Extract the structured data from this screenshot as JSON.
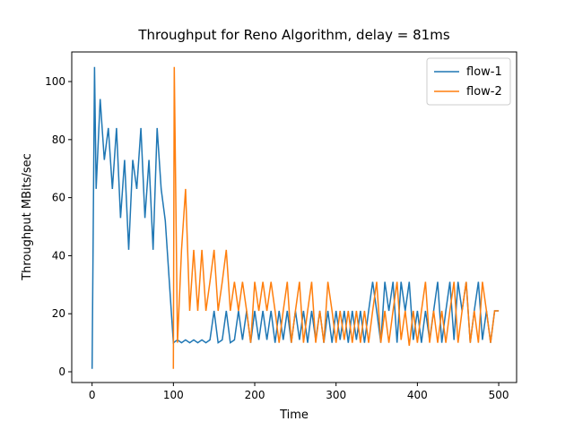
{
  "chart_data": {
    "type": "line",
    "title": "Throughput for Reno Algorithm, delay = 81ms",
    "x_label": "Time",
    "y_label": "Throughput MBits/sec",
    "xlim": [
      -25,
      522
    ],
    "ylim": [
      -3.7,
      110.2
    ],
    "xticks": [
      0,
      100,
      200,
      300,
      400,
      500
    ],
    "yticks": [
      0,
      20,
      40,
      60,
      80,
      100
    ],
    "grid": false,
    "legend": "upper right",
    "series": [
      {
        "name": "flow-1",
        "color": "#1f77b4",
        "x": [
          0,
          3,
          5,
          10,
          15,
          20,
          25,
          30,
          35,
          40,
          45,
          50,
          55,
          60,
          65,
          70,
          75,
          80,
          85,
          90,
          95,
          100,
          105,
          110,
          115,
          120,
          125,
          130,
          135,
          140,
          145,
          150,
          155,
          160,
          165,
          170,
          175,
          180,
          185,
          190,
          195,
          200,
          205,
          210,
          215,
          220,
          225,
          230,
          235,
          240,
          245,
          250,
          255,
          260,
          265,
          270,
          275,
          280,
          285,
          290,
          295,
          300,
          305,
          310,
          315,
          320,
          325,
          330,
          335,
          340,
          345,
          350,
          355,
          360,
          365,
          370,
          375,
          380,
          385,
          390,
          395,
          400,
          405,
          410,
          415,
          420,
          425,
          430,
          435,
          440,
          445,
          450,
          455,
          460,
          465,
          470,
          475,
          480,
          485,
          490,
          495,
          500
        ],
        "values": [
          1,
          105,
          63,
          94,
          73,
          84,
          63,
          84,
          53,
          73,
          42,
          73,
          63,
          84,
          53,
          73,
          42,
          84,
          63,
          52,
          31,
          10,
          11,
          10,
          11,
          10,
          11,
          10,
          11,
          10,
          11,
          21,
          10,
          11,
          21,
          10,
          11,
          21,
          11,
          21,
          10,
          21,
          11,
          21,
          11,
          21,
          10,
          21,
          11,
          21,
          10,
          21,
          11,
          21,
          10,
          21,
          11,
          21,
          10,
          21,
          10,
          21,
          11,
          21,
          10,
          21,
          11,
          21,
          10,
          21,
          31,
          21,
          10,
          31,
          21,
          31,
          10,
          31,
          21,
          31,
          11,
          21,
          10,
          21,
          11,
          21,
          31,
          10,
          21,
          31,
          11,
          31,
          21,
          31,
          10,
          21,
          31,
          11,
          21,
          10,
          21,
          21
        ]
      },
      {
        "name": "flow-2",
        "color": "#ff7f0e",
        "x": [
          100,
          101,
          105,
          110,
          115,
          120,
          125,
          130,
          135,
          140,
          145,
          150,
          155,
          160,
          165,
          170,
          175,
          180,
          185,
          190,
          195,
          200,
          205,
          210,
          215,
          220,
          225,
          230,
          235,
          240,
          245,
          250,
          255,
          260,
          265,
          270,
          275,
          280,
          285,
          290,
          295,
          300,
          305,
          310,
          315,
          320,
          325,
          330,
          335,
          340,
          345,
          350,
          355,
          360,
          365,
          370,
          375,
          380,
          385,
          390,
          395,
          400,
          405,
          410,
          415,
          420,
          425,
          430,
          435,
          440,
          445,
          450,
          455,
          460,
          465,
          470,
          475,
          480,
          485,
          490,
          495,
          500
        ],
        "values": [
          1,
          105,
          10,
          42,
          63,
          21,
          42,
          21,
          42,
          21,
          31,
          42,
          21,
          31,
          42,
          21,
          31,
          21,
          31,
          21,
          10,
          31,
          21,
          31,
          21,
          31,
          21,
          10,
          21,
          31,
          10,
          21,
          31,
          10,
          21,
          31,
          10,
          21,
          10,
          31,
          21,
          10,
          21,
          11,
          21,
          10,
          21,
          10,
          21,
          10,
          21,
          31,
          10,
          21,
          10,
          21,
          31,
          11,
          21,
          9,
          21,
          10,
          21,
          31,
          10,
          21,
          10,
          21,
          10,
          21,
          31,
          10,
          21,
          31,
          10,
          21,
          10,
          31,
          21,
          10,
          21,
          21
        ]
      }
    ]
  }
}
